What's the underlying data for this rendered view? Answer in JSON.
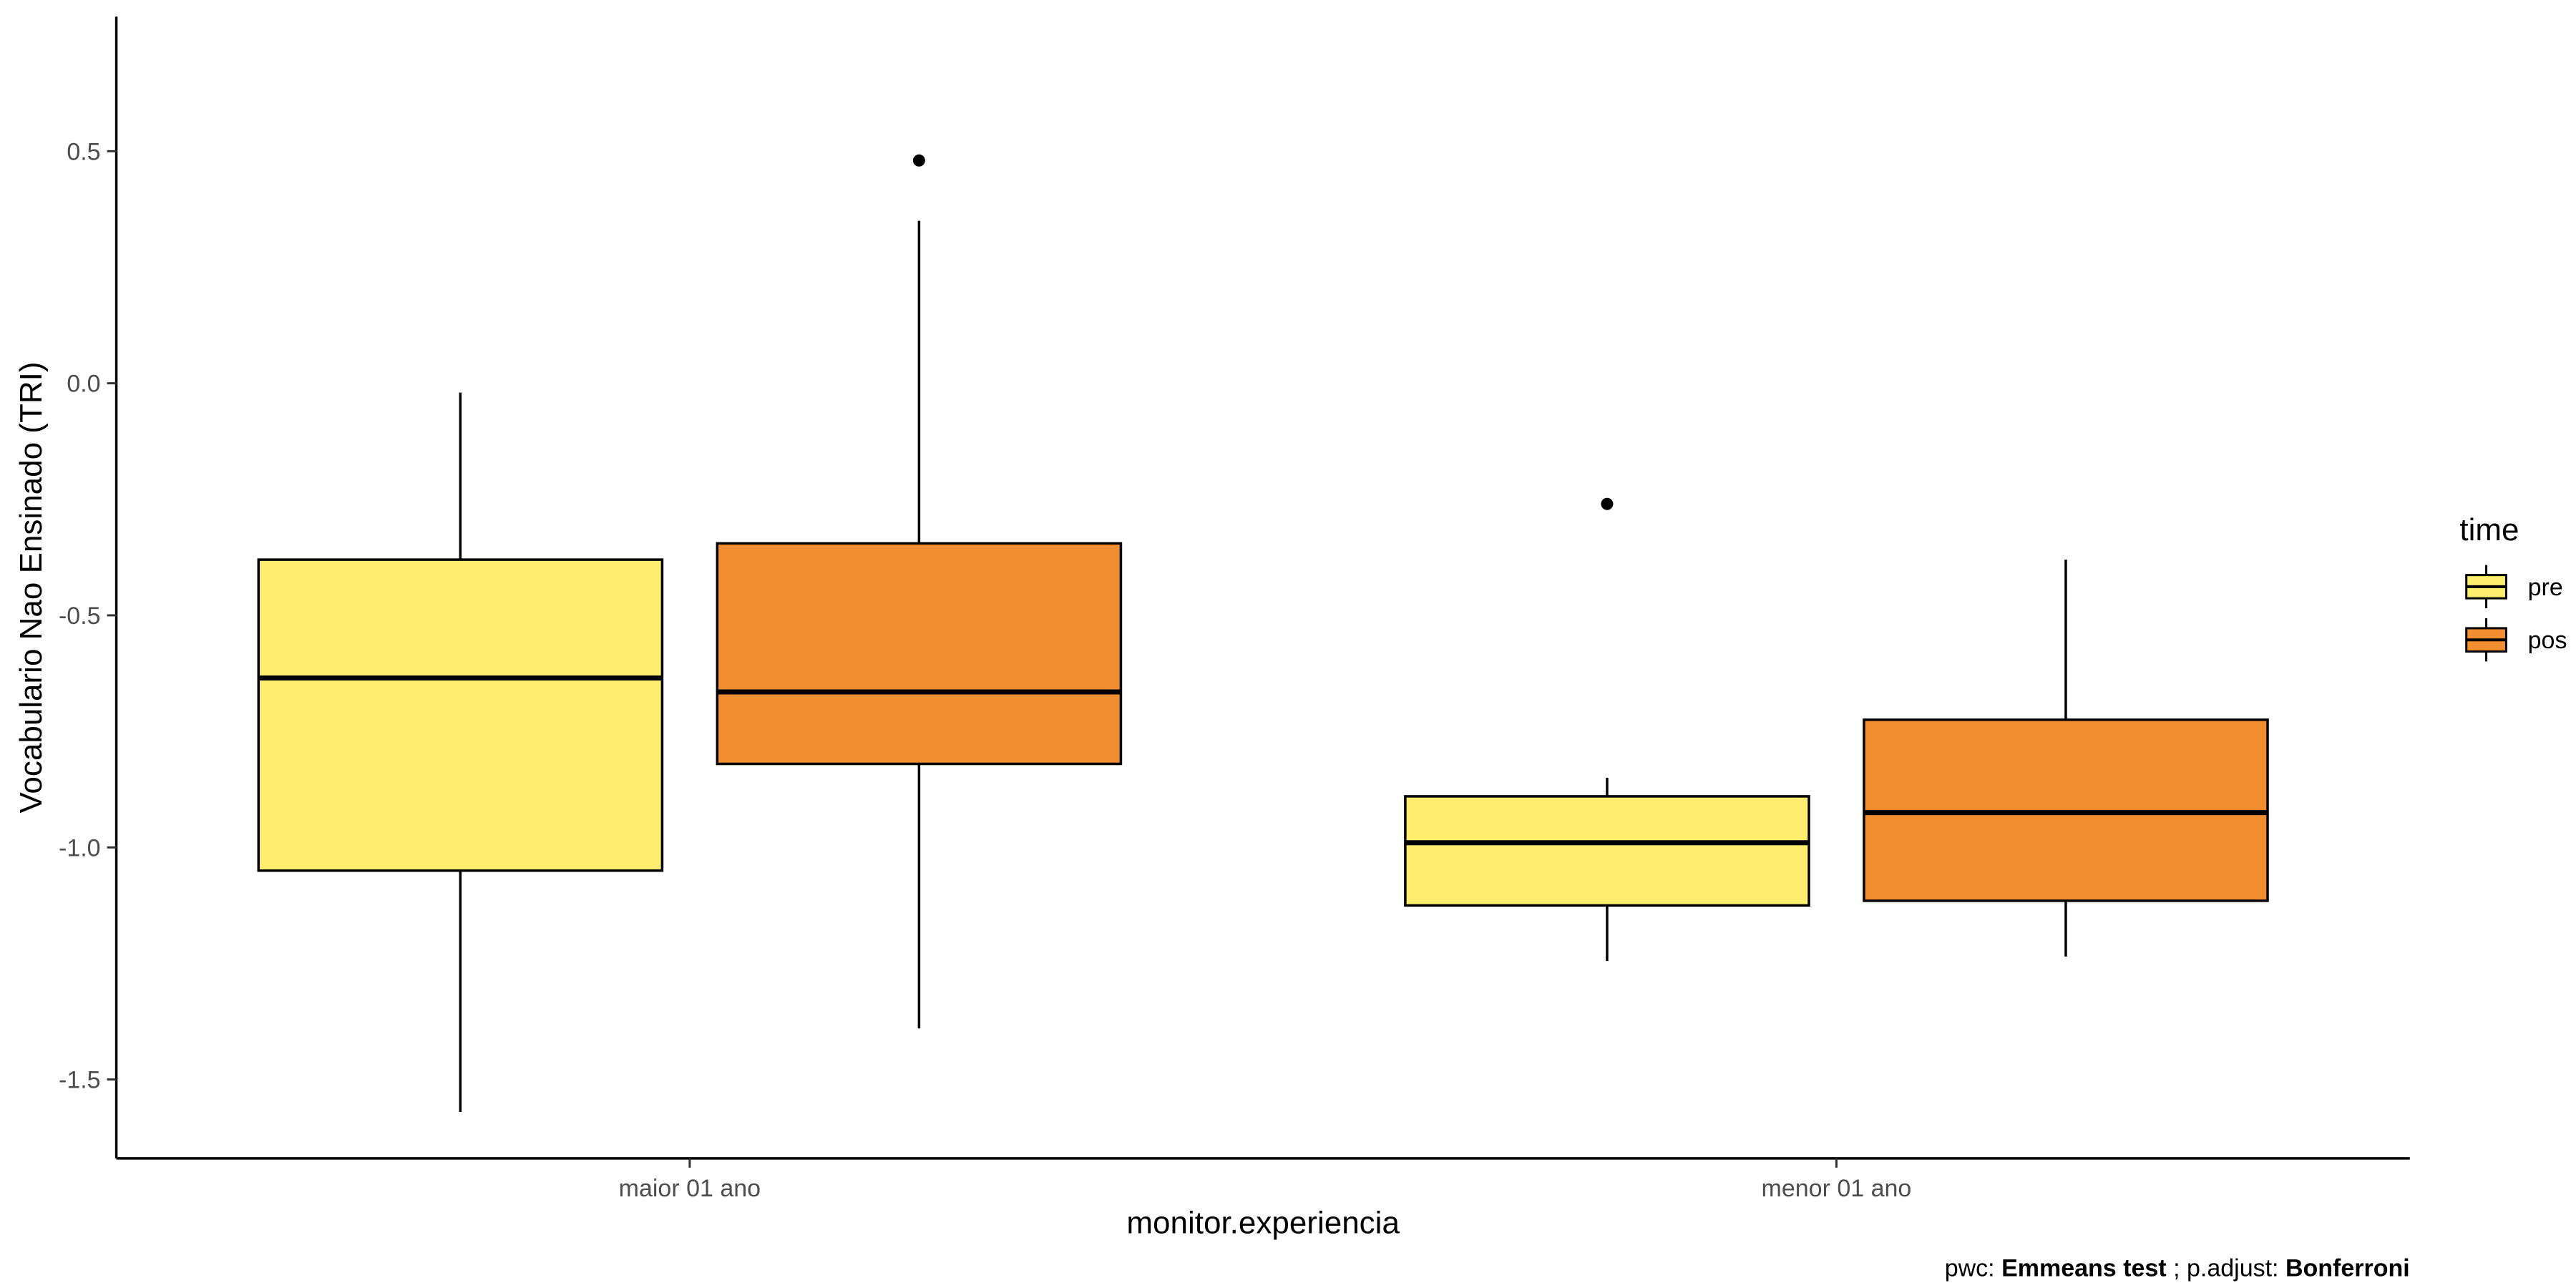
{
  "chart_data": {
    "type": "boxplot",
    "xlabel": "monitor.experiencia",
    "ylabel": "Vocabulario Nao Ensinado (TRI)",
    "ylim": [
      -1.67,
      0.79
    ],
    "yticks": [
      0.5,
      0.0,
      -0.5,
      -1.0,
      -1.5
    ],
    "ytick_labels": [
      "0.5",
      "0.0",
      "-0.5",
      "-1.0",
      "-1.5"
    ],
    "categories": [
      "maior 01 ano",
      "menor 01 ano"
    ],
    "legend": {
      "title": "time",
      "position": "right",
      "entries": [
        {
          "label": "pre",
          "color": "#FFED6F"
        },
        {
          "label": "pos",
          "color": "#F28E2F"
        }
      ]
    },
    "series": [
      {
        "name": "pre",
        "color": "#FFED6F",
        "boxes": [
          {
            "whisker_low": -1.57,
            "q1": -1.05,
            "median": -0.635,
            "q3": -0.38,
            "whisker_high": -0.02,
            "outliers": []
          },
          {
            "whisker_low": -1.245,
            "q1": -1.125,
            "median": -0.99,
            "q3": -0.89,
            "whisker_high": -0.85,
            "outliers": [
              -0.26
            ]
          }
        ]
      },
      {
        "name": "pos",
        "color": "#F28E2F",
        "boxes": [
          {
            "whisker_low": -1.39,
            "q1": -0.82,
            "median": -0.665,
            "q3": -0.345,
            "whisker_high": 0.35,
            "outliers": [
              0.48
            ]
          },
          {
            "whisker_low": -1.235,
            "q1": -1.115,
            "median": -0.925,
            "q3": -0.725,
            "whisker_high": -0.38,
            "outliers": []
          }
        ]
      }
    ],
    "caption": {
      "parts": [
        {
          "text": "pwc: ",
          "bold": false
        },
        {
          "text": "Emmeans test",
          "bold": true
        },
        {
          "text": "; p.adjust: ",
          "bold": false
        },
        {
          "text": "Bonferroni",
          "bold": true
        }
      ]
    }
  }
}
